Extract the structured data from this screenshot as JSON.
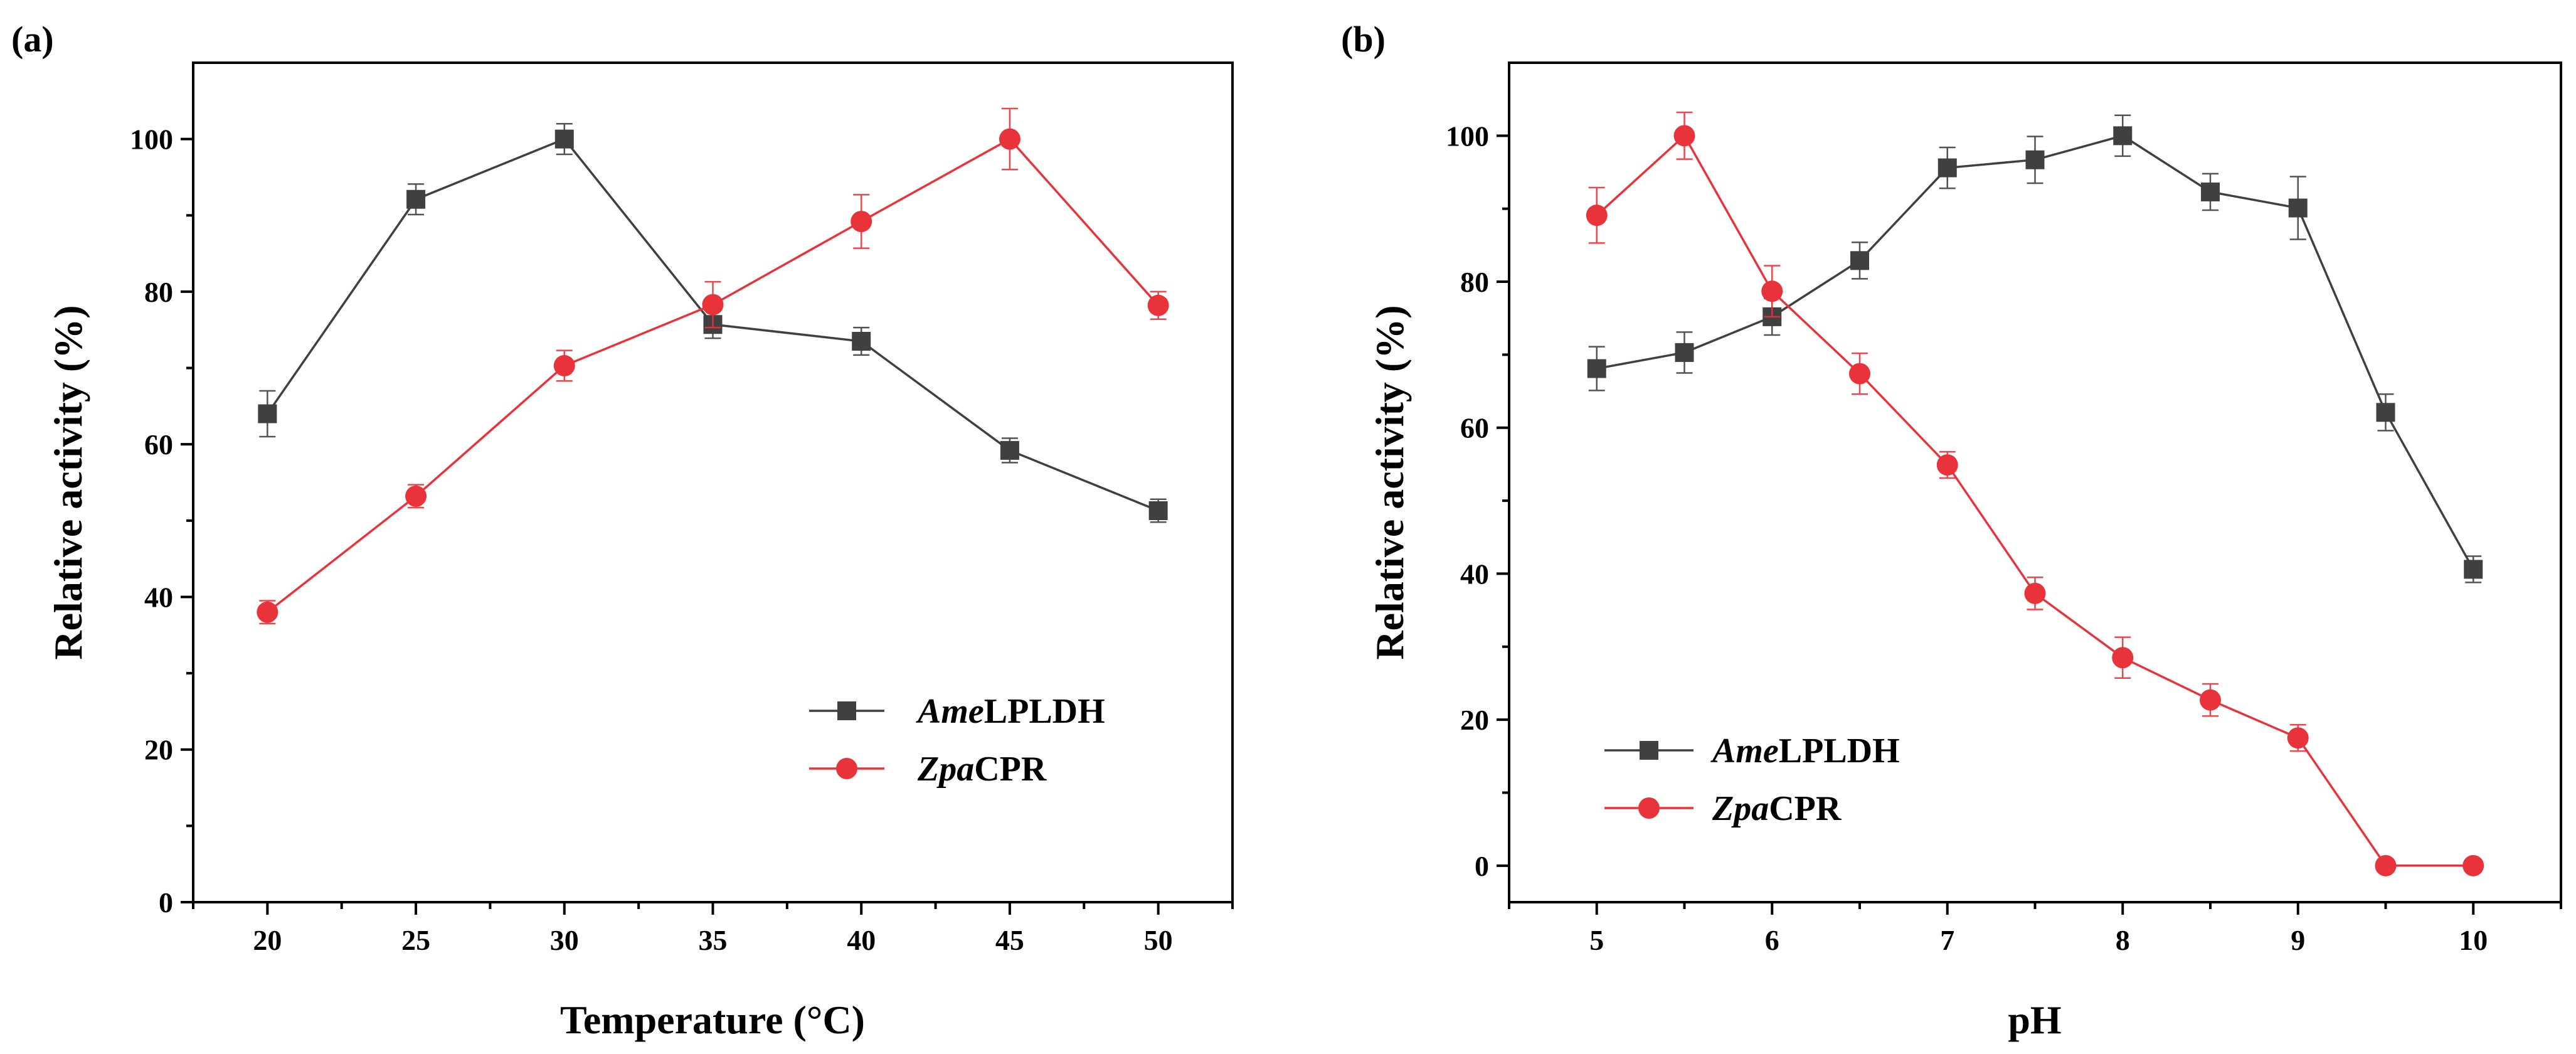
{
  "chart_data": [
    {
      "panel": "(a)",
      "type": "line",
      "xlabel": "Temperature (°C)",
      "ylabel": "Relative activity (%)",
      "xlim": [
        17.5,
        52.5
      ],
      "ylim": [
        0,
        110
      ],
      "xticks": [
        20,
        25,
        30,
        35,
        40,
        45,
        50
      ],
      "yticks": [
        0,
        20,
        40,
        60,
        80,
        100
      ],
      "legend_position": "bottom-right",
      "series": [
        {
          "name_italic": "Ame",
          "name_rest": "LPLDH",
          "color": "#404040",
          "marker": "square",
          "x": [
            20,
            25,
            30,
            35,
            40,
            45,
            50
          ],
          "values": [
            64.0,
            92.1,
            100.0,
            75.7,
            73.5,
            59.2,
            51.3
          ],
          "errors": [
            3.0,
            2.0,
            2.0,
            1.8,
            1.8,
            1.6,
            1.5
          ]
        },
        {
          "name_italic": "Zpa",
          "name_rest": "CPR",
          "color": "#e8333a",
          "marker": "circle",
          "x": [
            20,
            25,
            30,
            35,
            40,
            45,
            50
          ],
          "values": [
            38.0,
            53.2,
            70.3,
            78.3,
            89.2,
            100.0,
            78.2
          ],
          "errors": [
            1.5,
            1.5,
            2.0,
            3.0,
            3.5,
            4.0,
            1.8
          ]
        }
      ]
    },
    {
      "panel": "(b)",
      "type": "line",
      "xlabel": "pH",
      "ylabel": "Relative activity (%)",
      "xlim": [
        4.5,
        10.5
      ],
      "ylim": [
        -5,
        110
      ],
      "xticks": [
        5,
        6,
        7,
        8,
        9,
        10
      ],
      "yticks": [
        0,
        20,
        40,
        60,
        80,
        100
      ],
      "legend_position": "bottom-left",
      "series": [
        {
          "name_italic": "Ame",
          "name_rest": "LPLDH",
          "color": "#404040",
          "marker": "square",
          "x": [
            5,
            5.5,
            6,
            6.5,
            7,
            7.5,
            8,
            8.5,
            9,
            9.5,
            10
          ],
          "values": [
            68.1,
            70.3,
            75.2,
            82.9,
            95.6,
            96.7,
            100.0,
            92.3,
            90.1,
            62.1,
            40.6
          ],
          "errors": [
            3.0,
            2.8,
            2.5,
            2.5,
            2.8,
            3.2,
            2.8,
            2.5,
            4.3,
            2.5,
            1.8
          ]
        },
        {
          "name_italic": "Zpa",
          "name_rest": "CPR",
          "color": "#e8333a",
          "marker": "circle",
          "x": [
            5,
            5.5,
            6,
            6.5,
            7,
            7.5,
            8,
            8.5,
            9,
            9.5,
            10
          ],
          "values": [
            89.1,
            100.0,
            78.7,
            67.4,
            54.9,
            37.3,
            28.5,
            22.7,
            17.5,
            0.0,
            0.0
          ],
          "errors": [
            3.8,
            3.2,
            3.5,
            2.8,
            1.8,
            2.2,
            2.8,
            2.2,
            1.8,
            0.0,
            0.0
          ]
        }
      ]
    }
  ]
}
